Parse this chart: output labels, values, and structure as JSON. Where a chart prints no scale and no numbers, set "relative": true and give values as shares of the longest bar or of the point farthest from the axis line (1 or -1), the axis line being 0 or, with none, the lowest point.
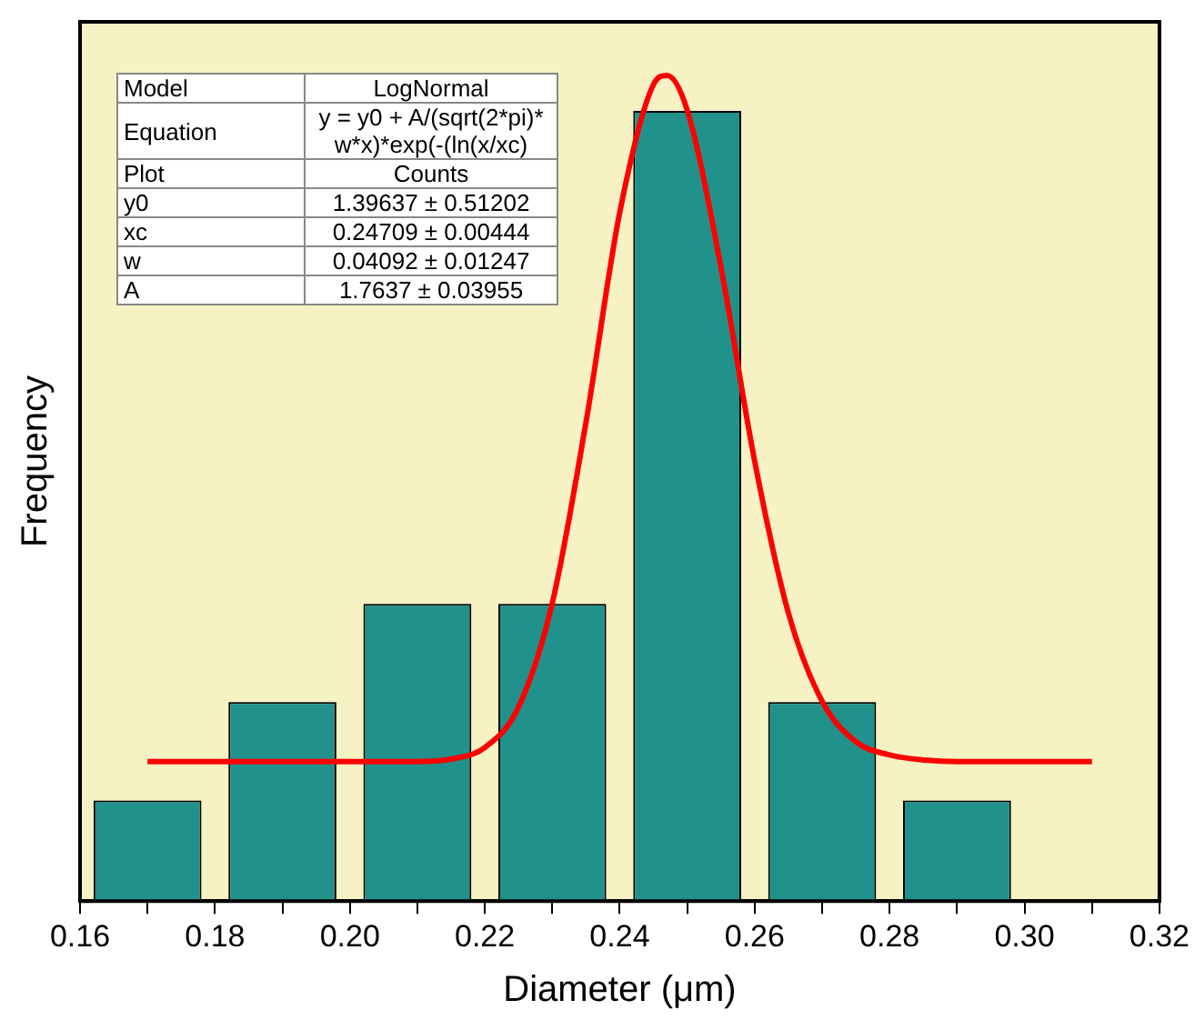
{
  "chart_data": {
    "type": "histogram",
    "xlabel": "Diameter (μm)",
    "ylabel": "Frequency",
    "relative": true,
    "bins": [
      0.16,
      0.18,
      0.2,
      0.22,
      0.24,
      0.26,
      0.28,
      0.3
    ],
    "values": [
      0.122,
      0.241,
      0.36,
      0.36,
      0.957,
      0.241,
      0.122
    ],
    "color": "#21918c",
    "series": [
      {
        "type": "line",
        "color": "#ff0000",
        "x": [
          0.17,
          0.19,
          0.2,
          0.21,
          0.215,
          0.22,
          0.225,
          0.23,
          0.235,
          0.24,
          0.245,
          0.247,
          0.25,
          0.255,
          0.26,
          0.265,
          0.27,
          0.275,
          0.28,
          0.285,
          0.29,
          0.3,
          0.31
        ],
        "values": [
          0.169,
          0.169,
          0.169,
          0.169,
          0.172,
          0.186,
          0.235,
          0.361,
          0.58,
          0.834,
          0.989,
          1.0,
          0.958,
          0.768,
          0.533,
          0.349,
          0.242,
          0.193,
          0.177,
          0.171,
          0.169,
          0.169,
          0.169
        ]
      }
    ],
    "xlim": [
      0.16,
      0.32
    ],
    "xticks": [
      0.16,
      {
        "value": 0.17,
        "label": null
      },
      "0.18",
      {
        "value": 0.19,
        "label": null
      },
      {
        "value": 0.2,
        "label": "0.20"
      },
      {
        "value": 0.21,
        "label": null
      },
      {
        "value": 0.22,
        "label": "0.22"
      },
      {
        "value": 0.23,
        "label": null
      },
      {
        "value": 0.24,
        "label": "0.24"
      },
      {
        "value": 0.25,
        "label": null
      },
      {
        "value": 0.26,
        "label": "0.26"
      },
      {
        "value": 0.27,
        "label": null
      },
      {
        "value": 0.28,
        "label": "0.28"
      },
      {
        "value": 0.29,
        "label": null
      },
      {
        "value": 0.3,
        "label": "0.30"
      },
      {
        "value": 0.31,
        "label": null
      },
      {
        "value": 0.32,
        "label": "0.32"
      }
    ],
    "annotations": [
      "Model",
      "LogNormal",
      "Equation",
      "y = y0 + A/(sqrt(2*pi)*w*x)*exp(-(ln(x/xc)",
      "Plot",
      "Counts",
      "y0",
      "1.39637 ± 0.51202",
      "xc",
      "0.24709 ± 0.00444",
      "w",
      "0.04092 ± 0.01247",
      "A",
      "1.7637 ± 0.03955"
    ],
    "grid": false,
    "legend": false,
    "marker": "none",
    "line_style": "solid"
  }
}
